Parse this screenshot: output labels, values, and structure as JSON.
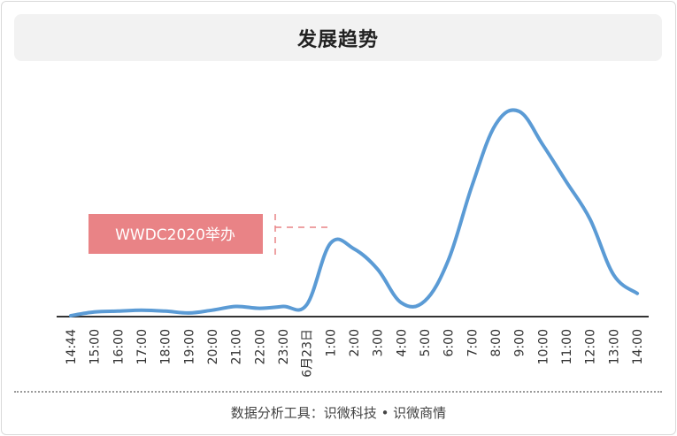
{
  "title": "发展趋势",
  "footer": "数据分析工具：识微科技 • 识微商情",
  "chart_data": {
    "type": "line",
    "title": "发展趋势",
    "xlabel": "",
    "ylabel": "",
    "grid": false,
    "legend": "none",
    "line_color": "#5b9bd5",
    "annotation": {
      "text": "WWDC2020举办",
      "at": "1:00",
      "color": "#e98386"
    },
    "categories": [
      "14:44",
      "15:00",
      "16:00",
      "17:00",
      "18:00",
      "19:00",
      "20:00",
      "21:00",
      "22:00",
      "23:00",
      "6月23日",
      "1:00",
      "2:00",
      "3:00",
      "4:00",
      "5:00",
      "6:00",
      "7:00",
      "8:00",
      "9:00",
      "10:00",
      "11:00",
      "12:00",
      "13:00",
      "14:00"
    ],
    "values": [
      0,
      2,
      2.5,
      3,
      2.5,
      1.5,
      3,
      5,
      4,
      5,
      6,
      39,
      36,
      25,
      7,
      8,
      30,
      70,
      103,
      110,
      92,
      72,
      52,
      22,
      12
    ]
  }
}
